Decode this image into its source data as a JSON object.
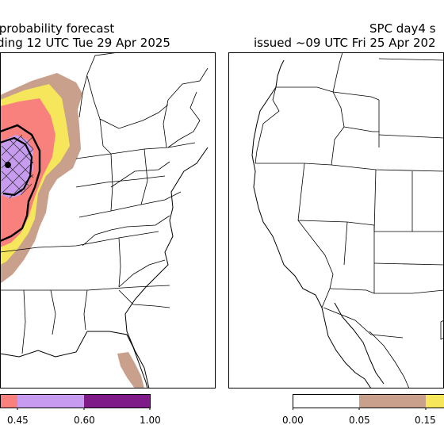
{
  "left_panel": {
    "title_line1": " probability forecast",
    "title_line2": "ding 12 UTC Tue 29 Apr 2025",
    "colorbar_ticks": [
      "0.45",
      "0.60",
      "1.00"
    ]
  },
  "right_panel": {
    "title_line1": "SPC day4 s",
    "title_line2": "issued ~09 UTC Fri 25 Apr 202",
    "colorbar_ticks": [
      "0.00",
      "0.05",
      "0.15"
    ]
  },
  "colors": {
    "prob_005": "#c8a08b",
    "prob_015": "#f6e65b",
    "prob_030": "#f8817d",
    "prob_045": "#c79cf0",
    "prob_060": "#7e1b89",
    "no_risk": "#ffffff",
    "border": "#000000"
  }
}
